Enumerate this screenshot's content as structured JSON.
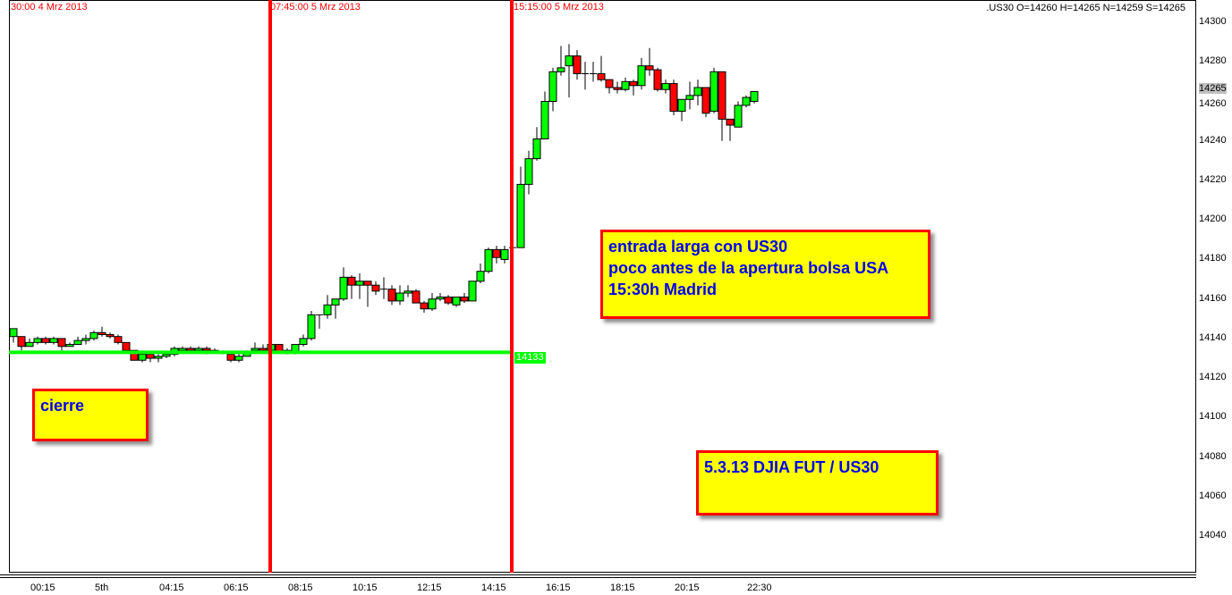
{
  "header": {
    "vline_labels": [
      "30:00 4 Mrz 2013",
      "07:45:00 5 Mrz 2013",
      "15:15:00 5 Mrz 2013"
    ],
    "info": ".US30 O=14260 H=14265 N=14259 S=14265"
  },
  "colors": {
    "up": "#00ff00",
    "down": "#ff0000",
    "vline": "#ff0000",
    "hline": "#00ff00",
    "note_bg": "#ffff00",
    "note_text": "#0000ee"
  },
  "notes": [
    {
      "text": "entrada larga con US30\npoco antes de la apertura bolsa USA\n15:30h Madrid"
    },
    {
      "text": "cierre"
    },
    {
      "text": "5.3.13 DJIA FUT / US30"
    }
  ],
  "chart_data": {
    "type": "candlestick",
    "symbol": ".US30",
    "interval": "15 min",
    "ylim": [
      14020,
      14305
    ],
    "y_ticks": [
      14300,
      14280,
      14260,
      14240,
      14220,
      14200,
      14180,
      14160,
      14140,
      14120,
      14100,
      14080,
      14060,
      14040
    ],
    "current_price": 14265,
    "x_tick_labels": [
      {
        "time": "00:15",
        "label": "00:15"
      },
      {
        "time": "02:15",
        "label": "5th"
      },
      {
        "time": "04:15",
        "label": "04:15"
      },
      {
        "time": "06:15",
        "label": "06:15"
      },
      {
        "time": "08:15",
        "label": "08:15"
      },
      {
        "time": "10:15",
        "label": "10:15"
      },
      {
        "time": "12:15",
        "label": "12:15"
      },
      {
        "time": "14:15",
        "label": "14:15"
      },
      {
        "time": "16:15",
        "label": "16:15"
      },
      {
        "time": "18:15",
        "label": "18:15"
      },
      {
        "time": "20:15",
        "label": "20:15"
      },
      {
        "time": "22:30",
        "label": "22:30"
      }
    ],
    "vertical_lines": [
      "07:45",
      "15:15"
    ],
    "horizontal_line": {
      "value": 14133,
      "label": "14133",
      "end_time": "15:15"
    },
    "candles_columns": [
      "time",
      "open",
      "high",
      "low",
      "close"
    ],
    "candles": [
      [
        "23:45",
        14141,
        14145,
        14138,
        14145
      ],
      [
        "00:00",
        14141,
        14141,
        14134,
        14136
      ],
      [
        "00:15",
        14136,
        14140,
        14136,
        14138
      ],
      [
        "00:30",
        14138,
        14141,
        14137,
        14140
      ],
      [
        "00:45",
        14140,
        14141,
        14137,
        14138
      ],
      [
        "01:00",
        14138,
        14141,
        14137,
        14140
      ],
      [
        "01:15",
        14140,
        14140,
        14134,
        14136
      ],
      [
        "01:30",
        14136,
        14138,
        14136,
        14137
      ],
      [
        "01:45",
        14137,
        14141,
        14137,
        14139
      ],
      [
        "02:00",
        14139,
        14142,
        14137,
        14140
      ],
      [
        "02:15",
        14140,
        14144,
        14139,
        14143
      ],
      [
        "02:30",
        14143,
        14146,
        14141,
        14142
      ],
      [
        "02:45",
        14142,
        14143,
        14140,
        14141
      ],
      [
        "03:00",
        14141,
        14142,
        14137,
        14138
      ],
      [
        "03:15",
        14138,
        14138,
        14134,
        14134
      ],
      [
        "03:30",
        14134,
        14134,
        14129,
        14129
      ],
      [
        "03:45",
        14129,
        14134,
        14128,
        14132
      ],
      [
        "04:00",
        14132,
        14133,
        14128,
        14130
      ],
      [
        "04:15",
        14130,
        14132,
        14128,
        14131
      ],
      [
        "04:30",
        14131,
        14133,
        14130,
        14132
      ],
      [
        "04:45",
        14132,
        14136,
        14131,
        14135
      ],
      [
        "05:00",
        14134,
        14136,
        14133,
        14135
      ],
      [
        "05:15",
        14135,
        14136,
        14133,
        14134
      ],
      [
        "05:30",
        14134,
        14136,
        14133,
        14135
      ],
      [
        "05:45",
        14135,
        14136,
        14132,
        14134
      ],
      [
        "06:00",
        14133,
        14135,
        14133,
        14134
      ],
      [
        "06:15",
        14133,
        14134,
        14132,
        14133
      ],
      [
        "06:30",
        14132,
        14133,
        14128,
        14129
      ],
      [
        "06:45",
        14129,
        14133,
        14128,
        14131
      ],
      [
        "07:00",
        14131,
        14134,
        14131,
        14133
      ],
      [
        "07:15",
        14134,
        14138,
        14133,
        14135
      ],
      [
        "07:30",
        14135,
        14137,
        14133,
        14134
      ],
      [
        "07:45",
        14134,
        14138,
        14133,
        14137
      ],
      [
        "08:00",
        14137,
        14137,
        14133,
        14133
      ],
      [
        "08:15",
        14133,
        14135,
        14132,
        14134
      ],
      [
        "08:30",
        14133,
        14137,
        14132,
        14137
      ],
      [
        "08:45",
        14137,
        14142,
        14136,
        14140
      ],
      [
        "09:00",
        14140,
        14154,
        14139,
        14152
      ],
      [
        "09:15",
        14152,
        14152,
        14145,
        14152
      ],
      [
        "09:30",
        14152,
        14162,
        14150,
        14157
      ],
      [
        "09:45",
        14157,
        14160,
        14150,
        14160
      ],
      [
        "10:00",
        14160,
        14176,
        14159,
        14171
      ],
      [
        "10:15",
        14171,
        14172,
        14160,
        14167
      ],
      [
        "10:30",
        14167,
        14173,
        14160,
        14169
      ],
      [
        "10:45",
        14169,
        14169,
        14156,
        14167
      ],
      [
        "11:00",
        14167,
        14169,
        14162,
        14164
      ],
      [
        "11:15",
        14165,
        14171,
        14160,
        14165
      ],
      [
        "11:30",
        14165,
        14167,
        14157,
        14159
      ],
      [
        "11:45",
        14159,
        14167,
        14157,
        14163
      ],
      [
        "12:00",
        14163,
        14167,
        14161,
        14164
      ],
      [
        "12:15",
        14164,
        14165,
        14158,
        14158
      ],
      [
        "12:30",
        14158,
        14159,
        14153,
        14155
      ],
      [
        "12:45",
        14155,
        14163,
        14154,
        14160
      ],
      [
        "13:00",
        14160,
        14163,
        14159,
        14161
      ],
      [
        "13:15",
        14161,
        14162,
        14157,
        14158
      ],
      [
        "13:30",
        14157,
        14161,
        14156,
        14161
      ],
      [
        "13:45",
        14161,
        14163,
        14158,
        14159
      ],
      [
        "14:00",
        14159,
        14169,
        14159,
        14169
      ],
      [
        "14:15",
        14169,
        14178,
        14168,
        14174
      ],
      [
        "14:30",
        14174,
        14186,
        14173,
        14185
      ],
      [
        "14:45",
        14185,
        14187,
        14178,
        14181
      ],
      [
        "15:00",
        14180,
        14187,
        14178,
        14185
      ],
      [
        "15:15",
        14186,
        14187,
        14185,
        14186
      ],
      [
        "15:30",
        14186,
        14227,
        14186,
        14218
      ],
      [
        "15:45",
        14218,
        14235,
        14213,
        14231
      ],
      [
        "16:00",
        14231,
        14247,
        14230,
        14241
      ],
      [
        "16:15",
        14241,
        14265,
        14241,
        14260
      ],
      [
        "16:30",
        14260,
        14277,
        14255,
        14275
      ],
      [
        "16:45",
        14275,
        14288,
        14273,
        14277
      ],
      [
        "17:00",
        14278,
        14289,
        14262,
        14283
      ],
      [
        "17:15",
        14283,
        14286,
        14271,
        14274
      ],
      [
        "17:30",
        14274,
        14280,
        14266,
        14274
      ],
      [
        "17:45",
        14274,
        14280,
        14270,
        14274
      ],
      [
        "18:00",
        14274,
        14283,
        14270,
        14271
      ],
      [
        "18:15",
        14271,
        14271,
        14264,
        14267
      ],
      [
        "18:30",
        14267,
        14270,
        14264,
        14266
      ],
      [
        "18:45",
        14266,
        14272,
        14265,
        14270
      ],
      [
        "19:00",
        14270,
        14271,
        14263,
        14268
      ],
      [
        "19:15",
        14268,
        14282,
        14266,
        14278
      ],
      [
        "19:30",
        14278,
        14287,
        14273,
        14276
      ],
      [
        "19:45",
        14276,
        14277,
        14265,
        14266
      ],
      [
        "20:00",
        14266,
        14271,
        14264,
        14269
      ],
      [
        "20:15",
        14269,
        14271,
        14253,
        14255
      ],
      [
        "20:30",
        14255,
        14261,
        14250,
        14261
      ],
      [
        "20:45",
        14261,
        14270,
        14256,
        14263
      ],
      [
        "21:00",
        14263,
        14271,
        14258,
        14267
      ],
      [
        "21:15",
        14267,
        14267,
        14252,
        14254
      ],
      [
        "21:30",
        14255,
        14277,
        14254,
        14275
      ],
      [
        "21:45",
        14275,
        14275,
        14240,
        14251
      ],
      [
        "22:00",
        14251,
        14251,
        14240,
        14248
      ],
      [
        "22:15",
        14247,
        14260,
        14247,
        14258
      ],
      [
        "22:30",
        14258,
        14263,
        14257,
        14262
      ],
      [
        "22:45",
        14260,
        14265,
        14259,
        14265
      ]
    ]
  }
}
